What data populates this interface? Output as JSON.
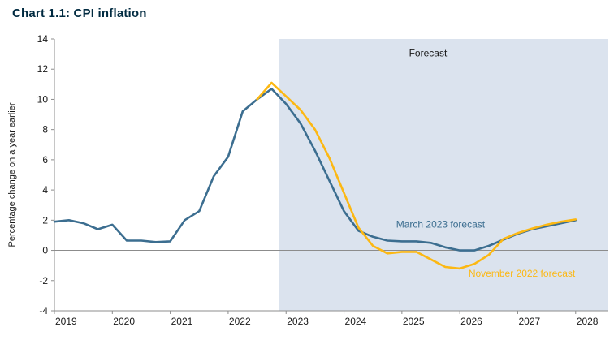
{
  "page": {
    "title": "Chart 1.1: CPI inflation"
  },
  "chart_data": {
    "type": "line",
    "title": "Chart 1.1: CPI inflation",
    "xlabel": "",
    "ylabel": "Percentage change on a year earlier",
    "ylim": [
      -4,
      14
    ],
    "xlim": [
      2019,
      2028.55
    ],
    "yticks": [
      -4,
      -2,
      0,
      2,
      4,
      6,
      8,
      10,
      12,
      14
    ],
    "xticks": [
      2019,
      2020,
      2021,
      2022,
      2023,
      2024,
      2025,
      2026,
      2027,
      2028
    ],
    "grid": false,
    "legend_position": "inline-annotations",
    "x_start": 2019,
    "x_step": 0.25,
    "forecast_shade_start": 2022.875,
    "colors": {
      "march": "#3C6E90",
      "november": "#FCB813",
      "shade": "#DBE3EE",
      "title": "#002A40",
      "text": "#1A1A1A",
      "axis": "#8C8C8C"
    },
    "series": [
      {
        "name": "March 2023 forecast",
        "color_key": "march",
        "values": [
          1.9,
          2.0,
          1.8,
          1.4,
          1.7,
          0.65,
          0.65,
          0.55,
          0.6,
          2.0,
          2.6,
          4.9,
          6.2,
          9.2,
          10.0,
          10.7,
          9.7,
          8.4,
          6.6,
          4.6,
          2.6,
          1.3,
          0.9,
          0.65,
          0.6,
          0.6,
          0.5,
          0.2,
          0.0,
          0.0,
          0.3,
          0.7,
          1.1,
          1.4,
          1.6,
          1.8,
          2.0
        ]
      },
      {
        "name": "November 2022 forecast",
        "color_key": "november",
        "values": [
          null,
          null,
          null,
          null,
          null,
          null,
          null,
          null,
          null,
          null,
          null,
          null,
          null,
          null,
          10.0,
          11.1,
          10.2,
          9.3,
          8.0,
          6.1,
          3.8,
          1.5,
          0.3,
          -0.2,
          -0.1,
          -0.1,
          -0.6,
          -1.1,
          -1.2,
          -0.9,
          -0.3,
          0.75,
          1.15,
          1.45,
          1.7,
          1.9,
          2.05
        ]
      }
    ],
    "annotations": [
      {
        "text": "Forecast",
        "x": 2025.45,
        "y": 12.85,
        "color_key": "text",
        "anchor": "middle"
      },
      {
        "text": "March 2023 forecast",
        "x": 2024.9,
        "y": 1.5,
        "color_key": "march",
        "anchor": "start"
      },
      {
        "text": "November 2022 forecast",
        "x": 2026.15,
        "y": -1.75,
        "color_key": "november",
        "anchor": "start"
      }
    ]
  }
}
